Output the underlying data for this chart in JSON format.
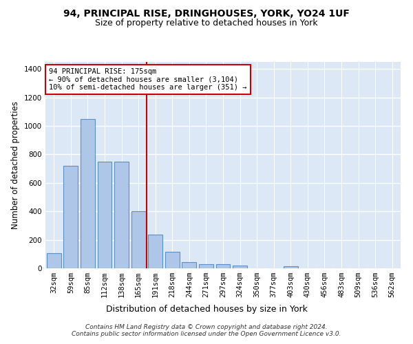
{
  "title_line1": "94, PRINCIPAL RISE, DRINGHOUSES, YORK, YO24 1UF",
  "title_line2": "Size of property relative to detached houses in York",
  "xlabel": "Distribution of detached houses by size in York",
  "ylabel": "Number of detached properties",
  "bar_categories": [
    "32sqm",
    "59sqm",
    "85sqm",
    "112sqm",
    "138sqm",
    "165sqm",
    "191sqm",
    "218sqm",
    "244sqm",
    "271sqm",
    "297sqm",
    "324sqm",
    "350sqm",
    "377sqm",
    "403sqm",
    "430sqm",
    "456sqm",
    "483sqm",
    "509sqm",
    "536sqm",
    "562sqm"
  ],
  "bar_values": [
    107,
    720,
    1050,
    750,
    750,
    400,
    235,
    115,
    45,
    30,
    30,
    20,
    0,
    0,
    15,
    0,
    0,
    0,
    0,
    0,
    0
  ],
  "bar_color": "#aec6e8",
  "bar_edgecolor": "#5a8fc0",
  "bar_linewidth": 0.8,
  "vline_x": 5.5,
  "vline_color": "#cc0000",
  "vline_linewidth": 1.5,
  "annotation_text": "94 PRINCIPAL RISE: 175sqm\n← 90% of detached houses are smaller (3,104)\n10% of semi-detached houses are larger (351) →",
  "annotation_box_edgecolor": "#cc0000",
  "annotation_box_facecolor": "white",
  "ylim": [
    0,
    1450
  ],
  "yticks": [
    0,
    200,
    400,
    600,
    800,
    1000,
    1200,
    1400
  ],
  "background_color": "#dce8f5",
  "grid_color": "white",
  "footer_text": "Contains HM Land Registry data © Crown copyright and database right 2024.\nContains public sector information licensed under the Open Government Licence v3.0.",
  "title_fontsize": 10,
  "subtitle_fontsize": 9,
  "xlabel_fontsize": 9,
  "ylabel_fontsize": 8.5,
  "tick_fontsize": 7.5,
  "annotation_fontsize": 7.5,
  "footer_fontsize": 6.5
}
